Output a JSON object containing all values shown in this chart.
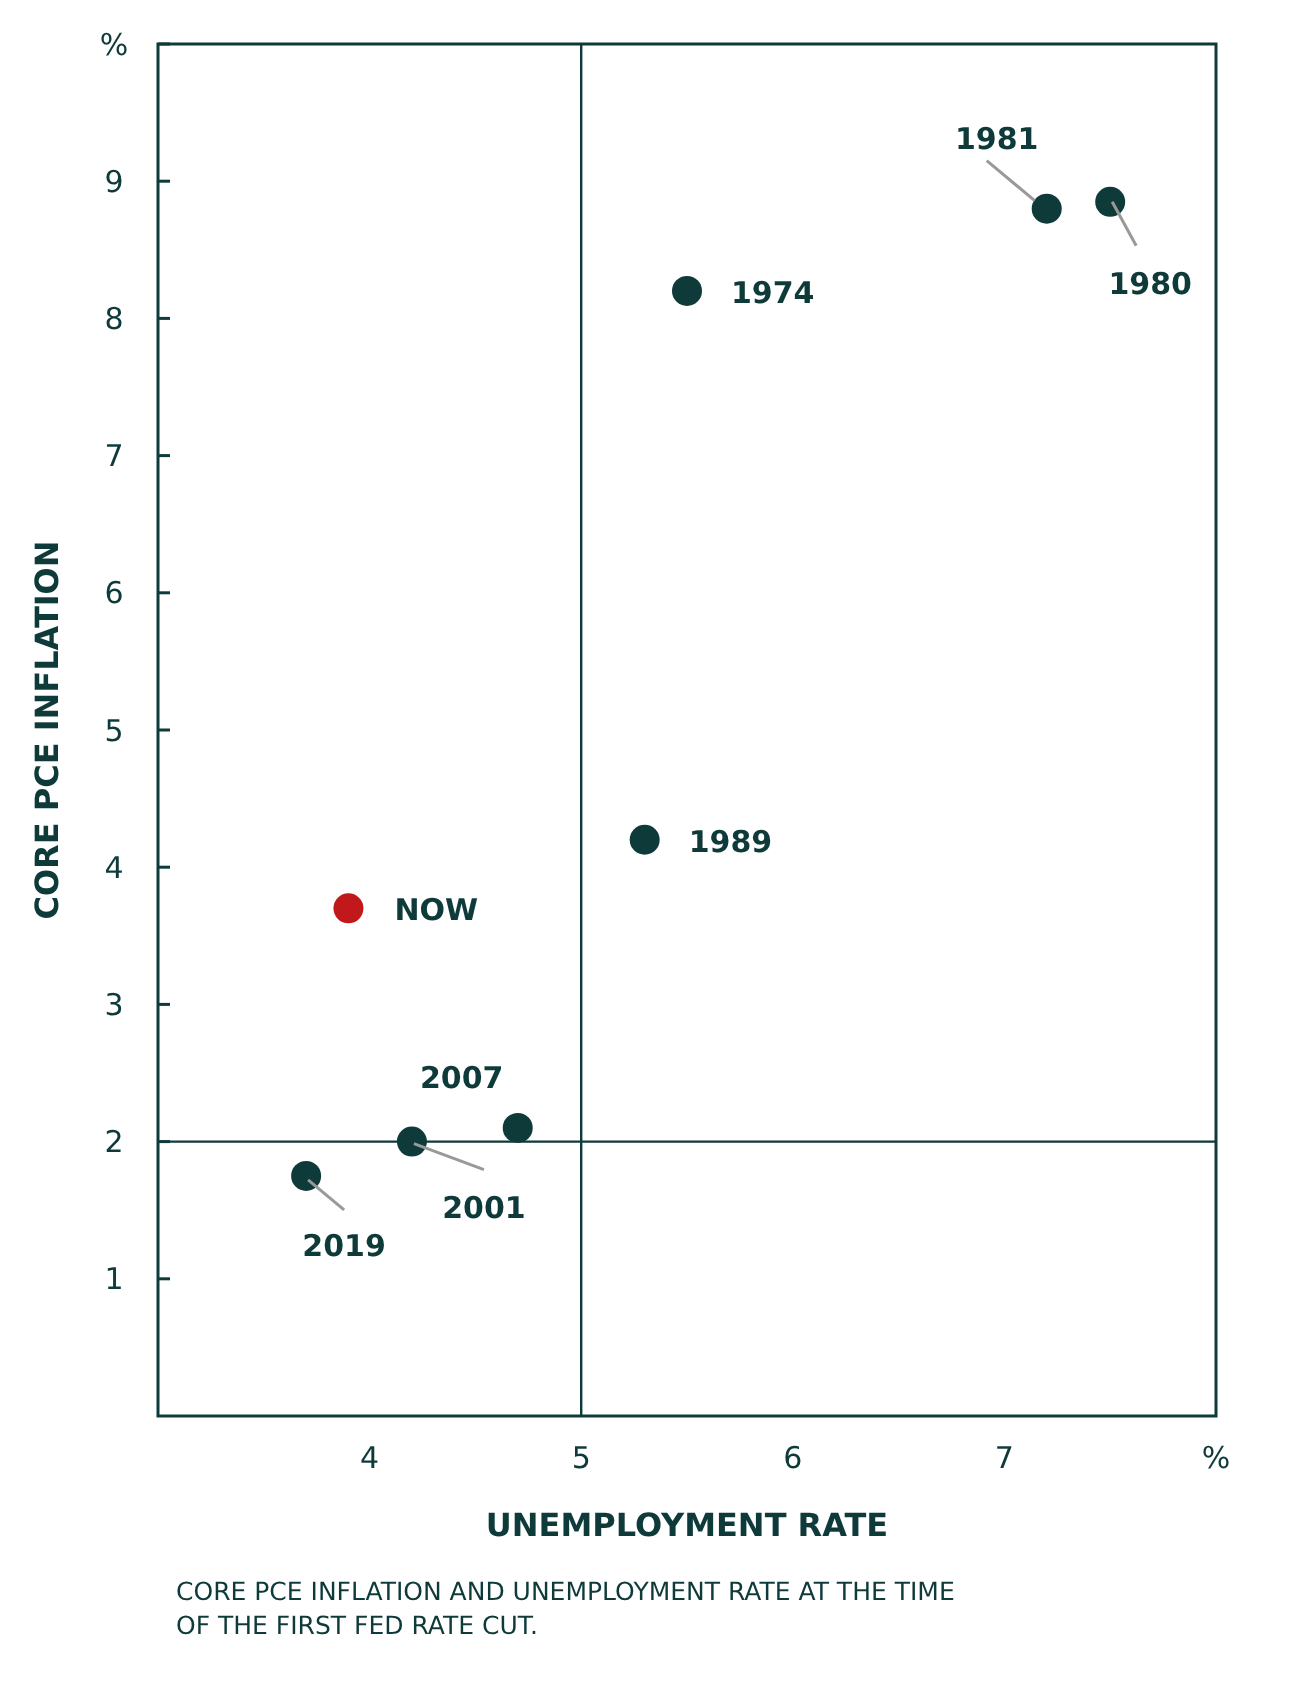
{
  "chart_data": {
    "type": "scatter",
    "xlabel": "UNEMPLOYMENT RATE",
    "ylabel": "CORE PCE INFLATION",
    "x": [
      5.5,
      7.2,
      7.5,
      5.3,
      3.9,
      4.7,
      4.2,
      3.7
    ],
    "values": [
      8.2,
      8.8,
      8.85,
      4.2,
      3.7,
      2.1,
      2.0,
      1.75
    ],
    "colors": [
      "#0f3a3a",
      "#0f3a3a",
      "#0f3a3a",
      "#0f3a3a",
      "#c0181b",
      "#0f3a3a",
      "#0f3a3a",
      "#0f3a3a"
    ],
    "marker": "circle",
    "xlim": [
      3,
      8
    ],
    "xticks": [
      4,
      5,
      6,
      7,
      {
        "value": 8,
        "label": "%"
      }
    ],
    "ylim": [
      0,
      10
    ],
    "yticks": [
      1,
      2,
      3,
      4,
      5,
      6,
      7,
      8,
      9,
      {
        "value": 10,
        "label": "%"
      }
    ],
    "grid": false,
    "ref_lines": [
      {
        "axis": "x",
        "value": 5
      },
      {
        "axis": "y",
        "value": 2
      }
    ],
    "annotations": [
      {
        "text": "1974",
        "x": 5.5,
        "y": 8.2
      },
      {
        "text": "1981",
        "x": 7.2,
        "y": 8.8
      },
      {
        "text": "1980",
        "x": 7.5,
        "y": 8.85
      },
      {
        "text": "1989",
        "x": 5.3,
        "y": 4.2
      },
      {
        "text": "NOW",
        "x": 3.9,
        "y": 3.7
      },
      {
        "text": "2007",
        "x": 4.7,
        "y": 2.1
      },
      {
        "text": "2001",
        "x": 4.2,
        "y": 2.0
      },
      {
        "text": "2019",
        "x": 3.7,
        "y": 1.75
      },
      "CORE PCE INFLATION AND UNEMPLOYMENT RATE AT THE TIME OF THE FIRST FED RATE CUT."
    ]
  }
}
